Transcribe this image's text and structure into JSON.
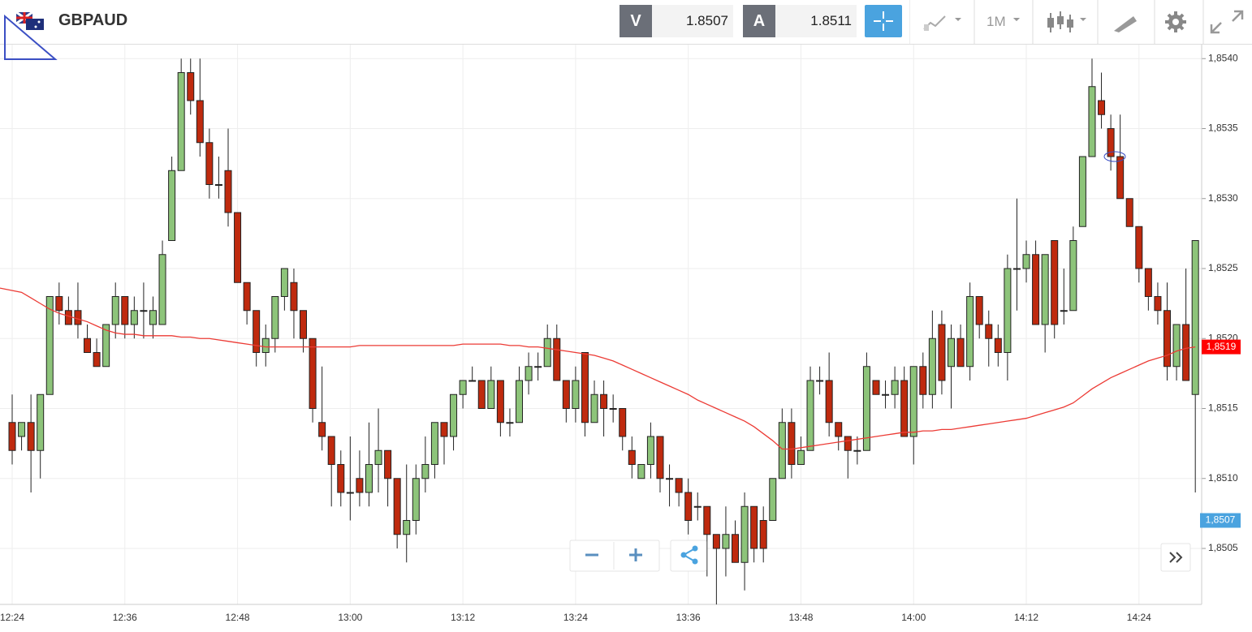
{
  "toolbar": {
    "symbol": "GBPAUD",
    "bid_label": "V",
    "bid": "1.8507",
    "ask_label": "A",
    "ask": "1.8511",
    "timeframe": "1M"
  },
  "chart_data": {
    "type": "candlestick",
    "categories": [
      "12:24",
      null,
      null,
      null,
      null,
      null,
      null,
      null,
      null,
      null,
      null,
      null,
      "12:36",
      null,
      null,
      null,
      null,
      null,
      null,
      null,
      null,
      null,
      null,
      null,
      "12:48",
      null,
      null,
      null,
      null,
      null,
      null,
      null,
      null,
      null,
      null,
      null,
      "13:00",
      null,
      null,
      null,
      null,
      null,
      null,
      null,
      null,
      null,
      null,
      null,
      "13:12",
      null,
      null,
      null,
      null,
      null,
      null,
      null,
      null,
      null,
      null,
      null,
      "13:24",
      null,
      null,
      null,
      null,
      null,
      null,
      null,
      null,
      null,
      null,
      null,
      "13:36",
      null,
      null,
      null,
      null,
      null,
      null,
      null,
      null,
      null,
      null,
      null,
      "13:48",
      null,
      null,
      null,
      null,
      null,
      null,
      null,
      null,
      null,
      null,
      null,
      "14:00",
      null,
      null,
      null,
      null,
      null,
      null,
      null,
      null,
      null,
      null,
      null,
      "14:12",
      null,
      null,
      null,
      null,
      null,
      null,
      null,
      null,
      null,
      null,
      null,
      "14:24",
      null,
      null,
      null,
      null,
      null,
      null
    ],
    "open": [
      1.8514,
      1.8513,
      1.8514,
      1.8512,
      1.8516,
      1.8523,
      1.8522,
      1.8522,
      1.852,
      1.8519,
      1.8518,
      1.8521,
      1.8523,
      1.8521,
      1.8522,
      1.8521,
      1.8521,
      1.8527,
      1.8532,
      1.8539,
      1.8537,
      1.8534,
      1.8531,
      1.8532,
      1.8529,
      1.8524,
      1.8522,
      1.8519,
      1.852,
      1.8523,
      1.8524,
      1.8522,
      1.852,
      1.8514,
      1.8513,
      1.8511,
      1.8509,
      1.851,
      1.8509,
      1.8511,
      1.8512,
      1.851,
      1.8506,
      1.8507,
      1.851,
      1.8511,
      1.8514,
      1.8513,
      1.8516,
      1.8517,
      1.8517,
      1.8515,
      1.8517,
      1.8514,
      1.8514,
      1.8517,
      1.8518,
      1.8518,
      1.852,
      1.8517,
      1.8515,
      1.8519,
      1.8514,
      1.8516,
      1.8515,
      1.8515,
      1.8512,
      1.851,
      1.8511,
      1.8513,
      1.851,
      1.851,
      1.8509,
      1.8508,
      1.8508,
      1.8506,
      1.8505,
      1.8506,
      1.8504,
      1.8508,
      1.8507,
      1.8507,
      1.851,
      1.8514,
      1.8511,
      1.8512,
      1.8517,
      1.8517,
      1.8514,
      1.8513,
      1.8512,
      1.8512,
      1.8517,
      1.8516,
      1.8516,
      1.8517,
      1.8513,
      1.8518,
      1.8516,
      1.8521,
      1.8518,
      1.852,
      1.8518,
      1.8523,
      1.8521,
      1.852,
      1.8519,
      1.8525,
      1.8525,
      1.8526,
      1.8521,
      1.8527,
      1.8522,
      1.8522,
      1.8528,
      1.8533,
      1.8537,
      1.8535,
      1.8533,
      1.853,
      1.8528,
      1.8525,
      1.8523,
      1.8522,
      1.8518,
      1.8521,
      1.8516
    ],
    "high": [
      1.8516,
      1.8514,
      1.8516,
      1.8516,
      1.8523,
      1.8524,
      1.8523,
      1.8524,
      1.8521,
      1.852,
      1.8521,
      1.8524,
      1.8523,
      1.8523,
      1.8524,
      1.8523,
      1.8527,
      1.8533,
      1.854,
      1.854,
      1.854,
      1.8535,
      1.8533,
      1.8535,
      1.8529,
      1.8524,
      1.8522,
      1.8521,
      1.8523,
      1.8525,
      1.8525,
      1.8522,
      1.852,
      1.8518,
      1.8513,
      1.8512,
      1.8513,
      1.8512,
      1.8514,
      1.8515,
      1.8512,
      1.851,
      1.8511,
      1.8511,
      1.8513,
      1.8514,
      1.8514,
      1.8516,
      1.8517,
      1.8518,
      1.8517,
      1.8518,
      1.8517,
      1.8515,
      1.8518,
      1.8519,
      1.8519,
      1.8521,
      1.8521,
      1.8517,
      1.8518,
      1.8519,
      1.8517,
      1.8517,
      1.8516,
      1.8515,
      1.8513,
      1.8511,
      1.8514,
      1.8513,
      1.8511,
      1.851,
      1.851,
      1.8509,
      1.8508,
      1.8506,
      1.8508,
      1.8507,
      1.8509,
      1.8508,
      1.8508,
      1.851,
      1.8515,
      1.8515,
      1.8513,
      1.8518,
      1.8518,
      1.8519,
      1.8514,
      1.8513,
      1.8513,
      1.8519,
      1.8517,
      1.8517,
      1.8518,
      1.8518,
      1.8518,
      1.8519,
      1.8522,
      1.8522,
      1.8521,
      1.8521,
      1.8524,
      1.8523,
      1.8522,
      1.8521,
      1.8526,
      1.853,
      1.8527,
      1.8527,
      1.8526,
      1.8527,
      1.8525,
      1.8528,
      1.8533,
      1.854,
      1.8539,
      1.8536,
      1.8536,
      1.853,
      1.8528,
      1.8525,
      1.8524,
      1.8524,
      1.8521,
      1.8525,
      1.8527
    ],
    "low": [
      1.8511,
      1.8512,
      1.8509,
      1.851,
      1.8516,
      1.8521,
      1.8521,
      1.852,
      1.8519,
      1.8518,
      1.8518,
      1.852,
      1.852,
      1.852,
      1.852,
      1.852,
      1.8521,
      1.8527,
      1.8532,
      1.8536,
      1.8533,
      1.853,
      1.853,
      1.8528,
      1.8524,
      1.8521,
      1.8518,
      1.8518,
      1.8519,
      1.8522,
      1.852,
      1.8519,
      1.8514,
      1.8512,
      1.8508,
      1.8508,
      1.8507,
      1.8508,
      1.8508,
      1.8509,
      1.8508,
      1.8505,
      1.8504,
      1.8506,
      1.8509,
      1.851,
      1.8511,
      1.8512,
      1.8515,
      1.8517,
      1.8515,
      1.8515,
      1.8513,
      1.8513,
      1.8514,
      1.8516,
      1.8517,
      1.8518,
      1.8517,
      1.8514,
      1.8514,
      1.8513,
      1.8514,
      1.8513,
      1.8514,
      1.8512,
      1.851,
      1.851,
      1.851,
      1.8509,
      1.8508,
      1.8508,
      1.8506,
      1.8507,
      1.8503,
      1.8501,
      1.8503,
      1.8504,
      1.8502,
      1.8504,
      1.8504,
      1.8507,
      1.851,
      1.851,
      1.8511,
      1.8512,
      1.8516,
      1.8513,
      1.8512,
      1.851,
      1.8511,
      1.8512,
      1.8516,
      1.8515,
      1.8515,
      1.8513,
      1.8511,
      1.8515,
      1.8515,
      1.8516,
      1.8515,
      1.8518,
      1.8517,
      1.852,
      1.8518,
      1.8518,
      1.8517,
      1.8522,
      1.8524,
      1.8521,
      1.8519,
      1.852,
      1.8521,
      1.8522,
      1.8528,
      1.8533,
      1.8535,
      1.8532,
      1.853,
      1.8528,
      1.8524,
      1.8522,
      1.8521,
      1.8517,
      1.8517,
      1.8517,
      1.8509
    ],
    "close": [
      1.8512,
      1.8514,
      1.8512,
      1.8516,
      1.8523,
      1.8522,
      1.8521,
      1.8521,
      1.8519,
      1.8518,
      1.8521,
      1.8523,
      1.8521,
      1.8522,
      1.8522,
      1.8522,
      1.8526,
      1.8532,
      1.8539,
      1.8537,
      1.8534,
      1.8531,
      1.8531,
      1.8529,
      1.8524,
      1.8522,
      1.8519,
      1.852,
      1.8523,
      1.8525,
      1.8522,
      1.852,
      1.8515,
      1.8513,
      1.8511,
      1.8509,
      1.8509,
      1.8509,
      1.8511,
      1.8512,
      1.851,
      1.8506,
      1.8507,
      1.851,
      1.8511,
      1.8514,
      1.8513,
      1.8516,
      1.8517,
      1.8517,
      1.8515,
      1.8517,
      1.8514,
      1.8514,
      1.8517,
      1.8518,
      1.8518,
      1.852,
      1.8517,
      1.8515,
      1.8517,
      1.8514,
      1.8516,
      1.8515,
      1.8515,
      1.8513,
      1.8511,
      1.8511,
      1.8513,
      1.851,
      1.851,
      1.8509,
      1.8507,
      1.8508,
      1.8506,
      1.8505,
      1.8506,
      1.8504,
      1.8508,
      1.8505,
      1.8505,
      1.851,
      1.8514,
      1.8511,
      1.8512,
      1.8517,
      1.8517,
      1.8514,
      1.8513,
      1.8512,
      1.8512,
      1.8518,
      1.8516,
      1.8516,
      1.8517,
      1.8513,
      1.8518,
      1.8516,
      1.852,
      1.8517,
      1.852,
      1.8518,
      1.8523,
      1.8521,
      1.852,
      1.8519,
      1.8525,
      1.8525,
      1.8526,
      1.8521,
      1.8526,
      1.8521,
      1.8522,
      1.8527,
      1.8533,
      1.8538,
      1.8536,
      1.8533,
      1.853,
      1.8528,
      1.8525,
      1.8523,
      1.8522,
      1.8518,
      1.8521,
      1.8517,
      1.8527
    ],
    "up_color": "#8dc47a",
    "down_color": "#bf2a0e",
    "ma": {
      "color": "#ec3b35",
      "last_label": "1,8519",
      "values": [
        1.85236,
        1.85233,
        1.85229,
        1.85225,
        1.85221,
        1.85218,
        1.85216,
        1.85214,
        1.85212,
        1.85209,
        1.85206,
        1.85204,
        1.85203,
        1.85203,
        1.85202,
        1.85202,
        1.85202,
        1.85202,
        1.85201,
        1.85201,
        1.852,
        1.852,
        1.85199,
        1.85198,
        1.85197,
        1.85196,
        1.85195,
        1.85194,
        1.85194,
        1.85194,
        1.85194,
        1.85194,
        1.85194,
        1.85194,
        1.85194,
        1.85194,
        1.85194,
        1.85195,
        1.85195,
        1.85195,
        1.85195,
        1.85195,
        1.85195,
        1.85195,
        1.85195,
        1.85195,
        1.85195,
        1.85195,
        1.85196,
        1.85196,
        1.85196,
        1.85196,
        1.85196,
        1.85195,
        1.85195,
        1.85194,
        1.85194,
        1.85193,
        1.85192,
        1.85191,
        1.8519,
        1.85189,
        1.85188,
        1.85186,
        1.85184,
        1.85181,
        1.85178,
        1.85175,
        1.85172,
        1.85169,
        1.85166,
        1.85163,
        1.8516,
        1.85156,
        1.85153,
        1.8515,
        1.85147,
        1.85144,
        1.85141,
        1.85137,
        1.85132,
        1.85127,
        1.85121,
        1.85121,
        1.85122,
        1.85123,
        1.85124,
        1.85125,
        1.85126,
        1.85127,
        1.85128,
        1.85129,
        1.8513,
        1.85131,
        1.85132,
        1.85133,
        1.85133,
        1.85134,
        1.85134,
        1.85135,
        1.85135,
        1.85136,
        1.85137,
        1.85138,
        1.85139,
        1.8514,
        1.85141,
        1.85142,
        1.85143,
        1.85145,
        1.85147,
        1.85149,
        1.85151,
        1.85154,
        1.85159,
        1.85164,
        1.85168,
        1.85172,
        1.85175,
        1.85178,
        1.85181,
        1.85184,
        1.85186,
        1.85188,
        1.85191,
        1.85193,
        1.85194
      ]
    },
    "last_price": {
      "value": 1.8507,
      "label": "1,8507",
      "color": "#4aa3df"
    },
    "ylim": [
      1.8501,
      1.8541
    ],
    "yticks": [
      {
        "value": 1.8505,
        "label": "1,8505"
      },
      {
        "value": 1.851,
        "label": "1,8510"
      },
      {
        "value": 1.8515,
        "label": "1,8515"
      },
      {
        "value": 1.852,
        "label": "1,8520"
      },
      {
        "value": 1.8525,
        "label": "1,8525"
      },
      {
        "value": 1.853,
        "label": "1,8530"
      },
      {
        "value": 1.8535,
        "label": "1,8535"
      },
      {
        "value": 1.854,
        "label": "1,8540"
      }
    ],
    "grid": true
  }
}
